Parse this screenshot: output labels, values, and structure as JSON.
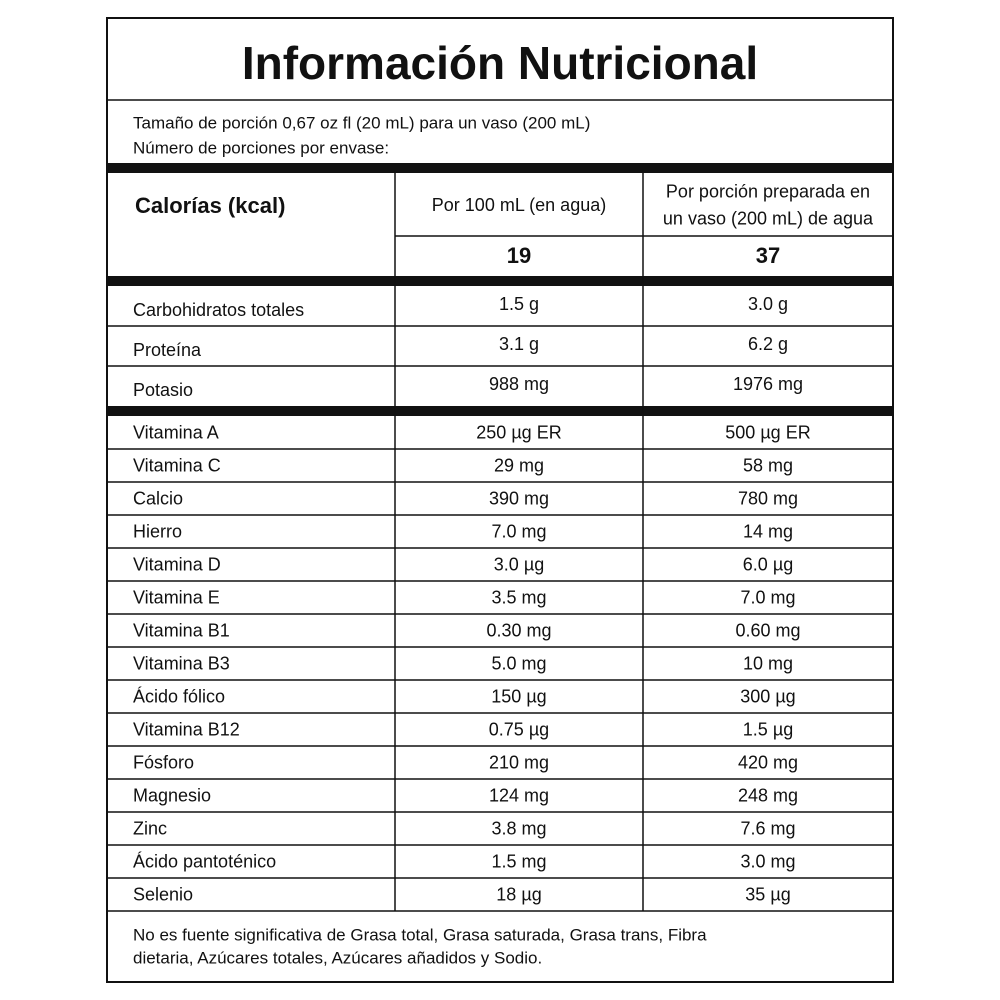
{
  "title": "Información Nutricional",
  "serving": [
    "Tamaño de porción 0,67 oz fl (20 mL) para un vaso (200 mL)",
    "Número de porciones por envase:"
  ],
  "calories": {
    "label": "Calorías (kcal)",
    "columns": [
      [
        "Por 100 mL (en agua)"
      ],
      [
        "Por porción preparada en",
        "un vaso (200 mL) de agua"
      ]
    ],
    "values": [
      19,
      37
    ]
  },
  "groups": [
    [
      [
        "Carbohidratos totales",
        "1.5 g",
        "3.0 g"
      ],
      [
        "Proteína",
        "3.1 g",
        "6.2 g"
      ],
      [
        "Potasio",
        "988 mg",
        "1976 mg"
      ]
    ],
    [
      [
        "Vitamina A",
        "250 µg ER",
        "500 µg ER"
      ],
      [
        "Vitamina C",
        "29 mg",
        "58 mg"
      ],
      [
        "Calcio",
        "390 mg",
        "780 mg"
      ],
      [
        "Hierro",
        "7.0 mg",
        "14 mg"
      ],
      [
        "Vitamina D",
        "3.0 µg",
        "6.0 µg"
      ],
      [
        "Vitamina E",
        "3.5 mg",
        "7.0 mg"
      ],
      [
        "Vitamina B1",
        "0.30 mg",
        "0.60 mg"
      ],
      [
        "Vitamina B3",
        "5.0 mg",
        "10 mg"
      ],
      [
        "Ácido fólico",
        "150 µg",
        "300 µg"
      ],
      [
        "Vitamina B12",
        "0.75 µg",
        "1.5 µg"
      ],
      [
        "Fósforo",
        "210 mg",
        "420 mg"
      ],
      [
        "Magnesio",
        "124 mg",
        "248 mg"
      ],
      [
        "Zinc",
        "3.8 mg",
        "7.6 mg"
      ],
      [
        "Ácido pantoténico",
        "1.5 mg",
        "3.0 mg"
      ],
      [
        "Selenio",
        "18 µg",
        "35 µg"
      ]
    ]
  ],
  "footnote": [
    "No es fuente significativa de Grasa total, Grasa saturada, Grasa trans, Fibra",
    "dietaria, Azúcares totales, Azúcares añadidos y Sodio."
  ]
}
